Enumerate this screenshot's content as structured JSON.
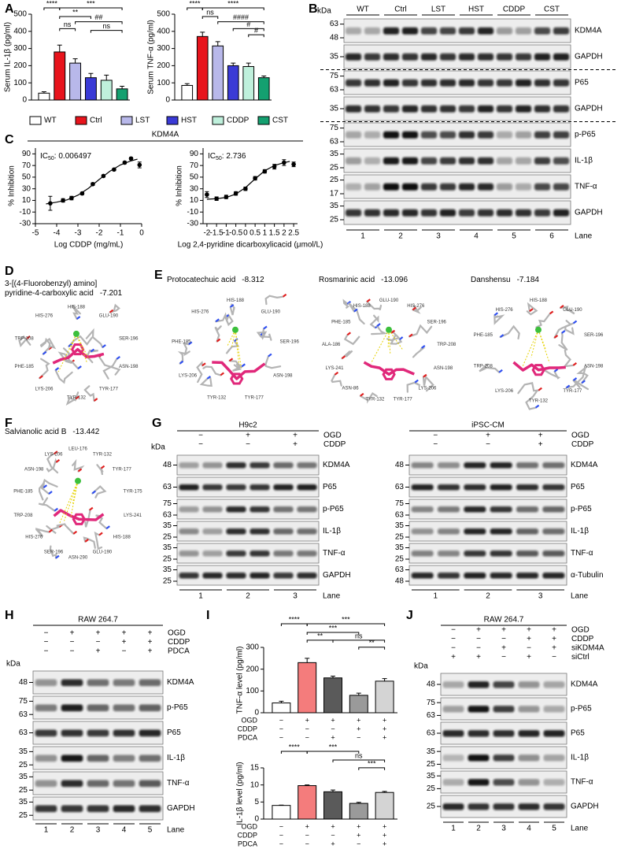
{
  "panel_letters": [
    "A",
    "B",
    "C",
    "D",
    "E",
    "F",
    "G",
    "H",
    "I",
    "J"
  ],
  "chart_data": [
    {
      "type": "bar",
      "ylabel": "Serum IL-1β (pg/ml)",
      "categories": [
        "WT",
        "Ctrl",
        "LST",
        "HST",
        "CDDP",
        "CST"
      ],
      "values": [
        40,
        280,
        215,
        130,
        115,
        65
      ],
      "errors": [
        8,
        40,
        25,
        25,
        30,
        15
      ],
      "colors": [
        "#ffffff",
        "#e8141c",
        "#b8b8ea",
        "#3a3ad6",
        "#bff0dc",
        "#14a070"
      ],
      "ylim": [
        0,
        500
      ],
      "yticks": [
        0,
        100,
        200,
        300,
        400,
        500
      ],
      "annotations": [
        "****",
        "***",
        "**",
        "##",
        "ns",
        "ns"
      ]
    },
    {
      "type": "bar",
      "ylabel": "Serum TNF-α (pg/ml)",
      "values": [
        85,
        370,
        315,
        200,
        195,
        130
      ],
      "errors": [
        10,
        25,
        25,
        15,
        20,
        10
      ],
      "colors": [
        "#ffffff",
        "#e8141c",
        "#b8b8ea",
        "#3a3ad6",
        "#bff0dc",
        "#14a070"
      ],
      "ylim": [
        0,
        500
      ],
      "yticks": [
        0,
        100,
        200,
        300,
        400,
        500
      ],
      "annotations": [
        "****",
        "****",
        "ns",
        "####",
        "#",
        "#"
      ]
    },
    {
      "type": "curve",
      "title": "KDM4A",
      "xlabel": "Log CDDP (mg/mL)",
      "ylabel": "% Inhibition",
      "ic50_label": "IC",
      "ic50_sub": "50",
      "ic50_text": ": 0.006497",
      "x": [
        -4.3,
        -3.7,
        -3.3,
        -2.8,
        -2.3,
        -1.8,
        -1.3,
        -0.8,
        -0.5,
        -0.1
      ],
      "values": [
        5,
        10,
        14,
        22,
        38,
        52,
        63,
        75,
        82,
        71
      ],
      "errors": [
        12,
        3,
        3,
        2,
        2,
        2,
        2,
        2,
        2,
        5
      ],
      "curve_x": [
        -4.5,
        -4,
        -3.5,
        -3,
        -2.5,
        -2,
        -1.5,
        -1,
        -0.5,
        -0.2
      ],
      "curve_values": [
        4,
        7,
        11,
        19,
        31,
        46,
        60,
        71,
        78,
        81
      ],
      "xlim": [
        -5,
        0
      ],
      "xticks": [
        -5,
        -4,
        -3,
        -2,
        -1,
        0
      ],
      "ylim": [
        -30,
        100
      ],
      "yticks": [
        -30,
        -10,
        10,
        30,
        50,
        70,
        90
      ]
    },
    {
      "type": "curve",
      "xlabel": "Log 2,4-pyridine dicarboxylicacid (μmol/L)",
      "ylabel": "% Inhibition",
      "ic50_label": "IC",
      "ic50_sub": "50",
      "ic50_text": ": 2.736",
      "x": [
        -2,
        -1.5,
        -1,
        -0.5,
        0,
        0.5,
        1,
        1.5,
        2,
        2.5
      ],
      "values": [
        20,
        13,
        16,
        22,
        30,
        48,
        60,
        68,
        75,
        72
      ],
      "errors": [
        5,
        3,
        3,
        3,
        3,
        3,
        3,
        4,
        5,
        4
      ],
      "curve_x": [
        -2,
        -1.5,
        -1,
        -0.5,
        0,
        0.5,
        1,
        1.5,
        2,
        2.3
      ],
      "curve_values": [
        12,
        13,
        15,
        21,
        32,
        47,
        61,
        70,
        75,
        77
      ],
      "xlim": [
        -2.2,
        2.7
      ],
      "xticks": [
        -2,
        -1.5,
        -1,
        -0.5,
        0,
        0.5,
        1,
        1.5,
        2,
        2.5
      ],
      "ylim": [
        -30,
        100
      ],
      "yticks": [
        -30,
        -10,
        10,
        30,
        50,
        70,
        90
      ]
    },
    {
      "type": "bar",
      "ylabel": "TNF-α level (pg/ml)",
      "values": [
        45,
        230,
        160,
        80,
        145
      ],
      "errors": [
        8,
        20,
        8,
        10,
        12
      ],
      "colors": [
        "#ffffff",
        "#f47c7c",
        "#5a5a5a",
        "#9a9a9a",
        "#d4d4d4"
      ],
      "ylim": [
        0,
        300
      ],
      "yticks": [
        0,
        100,
        200,
        300
      ],
      "annotations": [
        "****",
        "***",
        "***",
        "**",
        "ns",
        "**"
      ],
      "conditions": [
        {
          "label": "OGD",
          "signs": [
            "−",
            "+",
            "+",
            "+",
            "+"
          ]
        },
        {
          "label": "CDDP",
          "signs": [
            "−",
            "−",
            "−",
            "+",
            "+"
          ]
        },
        {
          "label": "PDCA",
          "signs": [
            "−",
            "−",
            "+",
            "−",
            "+"
          ]
        }
      ]
    },
    {
      "type": "bar",
      "ylabel": "IL-1β level (pg/ml)",
      "values": [
        4,
        9.8,
        8,
        4.6,
        7.8
      ],
      "errors": [
        0.1,
        0.2,
        0.5,
        0.3,
        0.3
      ],
      "colors": [
        "#ffffff",
        "#f47c7c",
        "#5a5a5a",
        "#9a9a9a",
        "#d4d4d4"
      ],
      "ylim": [
        0,
        15
      ],
      "yticks": [
        0,
        5,
        10,
        15
      ],
      "annotations": [
        "****",
        "***",
        "ns",
        "***"
      ],
      "conditions": [
        {
          "label": "OGD",
          "signs": [
            "−",
            "+",
            "+",
            "+",
            "+"
          ]
        },
        {
          "label": "CDDP",
          "signs": [
            "−",
            "−",
            "−",
            "+",
            "+"
          ]
        },
        {
          "label": "PDCA",
          "signs": [
            "−",
            "−",
            "+",
            "−",
            "+"
          ]
        }
      ]
    }
  ],
  "blots": [
    {
      "kda": "kDa",
      "groups": [
        "WT",
        "Ctrl",
        "LST",
        "HST",
        "CDDP",
        "CST"
      ],
      "rows": [
        {
          "label": "KDM4A",
          "markers": [
            63,
            48
          ]
        },
        {
          "label": "GAPDH",
          "markers": [
            35
          ]
        },
        {
          "label": "P65",
          "markers": [
            75,
            63
          ]
        },
        {
          "label": "GAPDH",
          "markers": [
            35
          ]
        },
        {
          "label": "p-P65",
          "markers": [
            75,
            63
          ]
        },
        {
          "label": "IL-1β",
          "markers": [
            35,
            25
          ]
        },
        {
          "label": "TNF-α",
          "markers": [
            25,
            17
          ]
        },
        {
          "label": "GAPDH",
          "markers": [
            35,
            25
          ]
        }
      ],
      "lanes": [
        1,
        2,
        3,
        4,
        5,
        6
      ],
      "lane_label": "Lane"
    },
    {
      "title": "H9c2",
      "kda": "kDa",
      "conditions": [
        {
          "label": "OGD",
          "signs": [
            "−",
            "+",
            "+"
          ]
        },
        {
          "label": "CDDP",
          "signs": [
            "−",
            "−",
            "+"
          ]
        }
      ],
      "rows": [
        {
          "label": "KDM4A",
          "markers": [
            48
          ]
        },
        {
          "label": "P65",
          "markers": [
            63
          ]
        },
        {
          "label": "p-P65",
          "markers": [
            75,
            63
          ]
        },
        {
          "label": "IL-1β",
          "markers": [
            35,
            25
          ]
        },
        {
          "label": "TNF-α",
          "markers": [
            35,
            25
          ]
        },
        {
          "label": "GAPDH",
          "markers": [
            35,
            25
          ]
        }
      ],
      "lanes": [
        1,
        2,
        3
      ],
      "lane_label": "Lane"
    },
    {
      "title": "iPSC-CM",
      "conditions": [
        {
          "label": "OGD",
          "signs": [
            "−",
            "+",
            "+"
          ]
        },
        {
          "label": "CDDP",
          "signs": [
            "−",
            "−",
            "+"
          ]
        }
      ],
      "rows": [
        {
          "label": "KDM4A",
          "markers": [
            48
          ]
        },
        {
          "label": "P65",
          "markers": [
            63
          ]
        },
        {
          "label": "p-P65",
          "markers": [
            75,
            63
          ]
        },
        {
          "label": "IL-1β",
          "markers": [
            35,
            25
          ]
        },
        {
          "label": "TNF-α",
          "markers": [
            35,
            25
          ]
        },
        {
          "label": "α-Tubulin",
          "markers": [
            63,
            48
          ]
        }
      ],
      "lanes": [
        1,
        2,
        3
      ],
      "lane_label": "Lane"
    },
    {
      "title": "RAW 264.7",
      "kda": "kDa",
      "conditions": [
        {
          "label": "OGD",
          "signs": [
            "−",
            "+",
            "+",
            "+",
            "+"
          ]
        },
        {
          "label": "CDDP",
          "signs": [
            "−",
            "−",
            "−",
            "+",
            "+"
          ]
        },
        {
          "label": "PDCA",
          "signs": [
            "−",
            "−",
            "+",
            "−",
            "+"
          ]
        }
      ],
      "rows": [
        {
          "label": "KDM4A",
          "markers": [
            48
          ]
        },
        {
          "label": "p-P65",
          "markers": [
            75,
            63
          ]
        },
        {
          "label": "P65",
          "markers": [
            63
          ]
        },
        {
          "label": "IL-1β",
          "markers": [
            35,
            25
          ]
        },
        {
          "label": "TNF-α",
          "markers": [
            35,
            25
          ]
        },
        {
          "label": "GAPDH",
          "markers": [
            35,
            25
          ]
        }
      ],
      "lanes": [
        1,
        2,
        3,
        4,
        5
      ],
      "lane_label": "Lane"
    },
    {
      "title": "RAW 264.7",
      "kda": "kDa",
      "conditions": [
        {
          "label": "OGD",
          "signs": [
            "−",
            "+",
            "+",
            "+",
            "+"
          ]
        },
        {
          "label": "CDDP",
          "signs": [
            "−",
            "−",
            "−",
            "+",
            "+"
          ]
        },
        {
          "label": "siKDM4A",
          "signs": [
            "−",
            "−",
            "+",
            "−",
            "+"
          ]
        },
        {
          "label": "siCtrl",
          "signs": [
            "+",
            "+",
            "−",
            "+",
            "−"
          ]
        }
      ],
      "rows": [
        {
          "label": "KDM4A",
          "markers": [
            48
          ]
        },
        {
          "label": "p-P65",
          "markers": [
            75,
            63
          ]
        },
        {
          "label": "P65",
          "markers": [
            63
          ]
        },
        {
          "label": "IL-1β",
          "markers": [
            35,
            25
          ]
        },
        {
          "label": "TNF-α",
          "markers": [
            35,
            25
          ]
        },
        {
          "label": "GAPDH",
          "markers": [
            25
          ]
        }
      ],
      "lanes": [
        1,
        2,
        3,
        4,
        5
      ],
      "lane_label": "Lane"
    }
  ],
  "docking": [
    {
      "title_lines": [
        "3-[(4-Fluorobenzyl) amino]",
        "pyridine-4-carboxylic acid"
      ],
      "score": -7.201,
      "residues": [
        "HIS-188",
        "GLU-190",
        "SER-196",
        "ASN-198",
        "TYR-177",
        "TYR-132",
        "LYS-206",
        "PHE-185",
        "TRP-208",
        "HIS-276"
      ]
    },
    {
      "title_lines": [
        "Protocatechuic acid"
      ],
      "score": -8.312,
      "residues": [
        "HIS-188",
        "GLU-190",
        "SER-196",
        "ASN-198",
        "TYR-177",
        "TYR-132",
        "LYS-206",
        "PHE-185",
        "HIS-276"
      ]
    },
    {
      "title_lines": [
        "Rosmarinic acid"
      ],
      "score": -13.096,
      "residues": [
        "GLU-190",
        "HIS-276",
        "SER-196",
        "TRP-208",
        "ASN-198",
        "LYS-206",
        "TYR-177",
        "TYR-132",
        "ASN-86",
        "LYS-241",
        "ALA-186",
        "PHE-185",
        "HIS-188"
      ]
    },
    {
      "title_lines": [
        "Danshensu"
      ],
      "score": -7.184,
      "residues": [
        "HIS-188",
        "GLU-190",
        "SER-196",
        "ASN-198",
        "TYR-177",
        "TYR-132",
        "LYS-206",
        "TRP-208",
        "PHE-185",
        "HIS-276"
      ]
    },
    {
      "title_lines": [
        "Salvianolic acid B"
      ],
      "score": -13.442,
      "residues": [
        "LEU-176",
        "TYR-132",
        "TYR-177",
        "TYR-175",
        "LYS-241",
        "HIS-188",
        "GLU-190",
        "ASN-290",
        "SER-196",
        "HIS-276",
        "TRP-208",
        "PHE-185",
        "ASN-198",
        "LYS-206"
      ]
    }
  ]
}
